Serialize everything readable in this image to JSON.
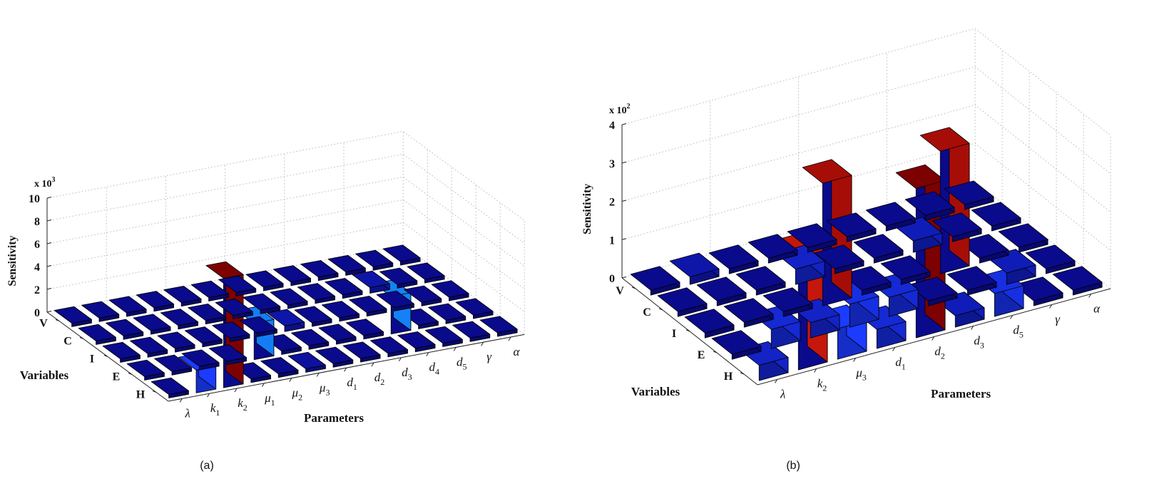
{
  "chart_data": [
    {
      "type": "bar3d",
      "caption": "(a)",
      "zlabel": "Sensitivity",
      "xlabel": "Parameters",
      "ylabel": "Variables",
      "exponent_base": "x 10",
      "exponent_power": "3",
      "zlim": [
        0,
        10
      ],
      "zticks": [
        "0",
        "2",
        "4",
        "6",
        "8",
        "10"
      ],
      "variables": [
        "H",
        "E",
        "I",
        "C",
        "V"
      ],
      "parameters": [
        "λ",
        "k1",
        "k2",
        "μ1",
        "μ2",
        "μ3",
        "d1",
        "d2",
        "d3",
        "d4",
        "d5",
        "γ",
        "α"
      ],
      "parameter_labels": [
        {
          "base": "λ",
          "sub": ""
        },
        {
          "base": "k",
          "sub": "1"
        },
        {
          "base": "k",
          "sub": "2"
        },
        {
          "base": "μ",
          "sub": "1"
        },
        {
          "base": "μ",
          "sub": "2"
        },
        {
          "base": "μ",
          "sub": "3"
        },
        {
          "base": "d",
          "sub": "1"
        },
        {
          "base": "d",
          "sub": "2"
        },
        {
          "base": "d",
          "sub": "3"
        },
        {
          "base": "d",
          "sub": "4"
        },
        {
          "base": "d",
          "sub": "5"
        },
        {
          "base": "γ",
          "sub": ""
        },
        {
          "base": "α",
          "sub": ""
        }
      ],
      "bars": [
        {
          "variable": "H",
          "parameter": "k1",
          "value": 2.0
        },
        {
          "variable": "H",
          "parameter": "k2",
          "value": 9.6
        },
        {
          "variable": "H",
          "parameter": "μ3",
          "value": 0.3
        },
        {
          "variable": "E",
          "parameter": "μ2",
          "value": 3.2
        },
        {
          "variable": "E",
          "parameter": "d4",
          "value": 3.3
        },
        {
          "variable": "I",
          "parameter": "d1",
          "value": 0.5
        },
        {
          "variable": "C",
          "parameter": "d5",
          "value": 0.5
        }
      ]
    },
    {
      "type": "bar3d",
      "caption": "(b)",
      "zlabel": "Sensitivity",
      "xlabel": "Parameters",
      "ylabel": "Variables",
      "exponent_base": "x 10",
      "exponent_power": "2",
      "zlim": [
        0,
        4
      ],
      "zticks": [
        "0",
        "1",
        "2",
        "3",
        "4"
      ],
      "variables": [
        "H",
        "E",
        "I",
        "C",
        "V"
      ],
      "parameters": [
        "λ",
        "k2",
        "μ3",
        "d1",
        "d2",
        "d3",
        "d5",
        "γ",
        "α"
      ],
      "parameter_labels": [
        {
          "base": "λ",
          "sub": ""
        },
        {
          "base": "k",
          "sub": "2"
        },
        {
          "base": "μ",
          "sub": "3"
        },
        {
          "base": "d",
          "sub": "1"
        },
        {
          "base": "d",
          "sub": "2"
        },
        {
          "base": "d",
          "sub": "3"
        },
        {
          "base": "d",
          "sub": "5"
        },
        {
          "base": "γ",
          "sub": ""
        },
        {
          "base": "α",
          "sub": ""
        }
      ],
      "bars": [
        {
          "variable": "H",
          "parameter": "λ",
          "value": 0.4
        },
        {
          "variable": "H",
          "parameter": "k2",
          "value": 3.0
        },
        {
          "variable": "H",
          "parameter": "μ3",
          "value": 0.8
        },
        {
          "variable": "H",
          "parameter": "d1",
          "value": 0.5
        },
        {
          "variable": "H",
          "parameter": "d2",
          "value": 3.9
        },
        {
          "variable": "H",
          "parameter": "d3",
          "value": 0.3
        },
        {
          "variable": "H",
          "parameter": "d5",
          "value": 0.6
        },
        {
          "variable": "E",
          "parameter": "k2",
          "value": 0.5
        },
        {
          "variable": "E",
          "parameter": "μ3",
          "value": 0.4
        },
        {
          "variable": "E",
          "parameter": "d1",
          "value": 0.6
        },
        {
          "variable": "E",
          "parameter": "d2",
          "value": 0.5
        },
        {
          "variable": "E",
          "parameter": "γ",
          "value": 0.3
        },
        {
          "variable": "I",
          "parameter": "d1",
          "value": 3.2
        },
        {
          "variable": "I",
          "parameter": "d5",
          "value": 3.2
        },
        {
          "variable": "C",
          "parameter": "d1",
          "value": 0.4
        },
        {
          "variable": "C",
          "parameter": "d5",
          "value": 0.3
        },
        {
          "variable": "V",
          "parameter": "k2",
          "value": 0.2
        }
      ]
    }
  ]
}
